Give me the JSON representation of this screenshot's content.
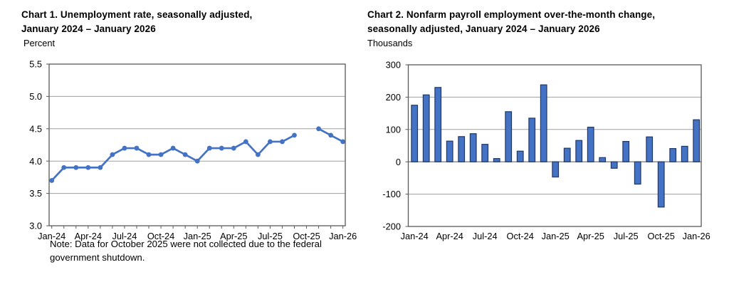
{
  "page": {
    "background": "#ffffff"
  },
  "colors": {
    "series_blue": "#4472c4",
    "bar_fill": "#4472c4",
    "bar_border": "#1f3864",
    "gridline": "#a0a0a0",
    "zero_line": "#808080",
    "axis_border": "#595959",
    "tick_color": "#595959",
    "text": "#000000"
  },
  "chart1": {
    "title_lines": [
      "Chart 1. Unemployment rate, seasonally adjusted,",
      "January 2024 – January 2026"
    ],
    "unit_label": "Percent",
    "note_lines": [
      "Note: Data for October 2025 were not collected due to the federal",
      "government shutdown."
    ]
  },
  "chart2": {
    "title_lines": [
      "Chart 2. Nonfarm payroll employment over-the-month change,",
      "seasonally adjusted, January 2024 – January 2026"
    ],
    "unit_label": "Thousands"
  },
  "chart_data": [
    {
      "type": "line",
      "title": "Chart 1. Unemployment rate, seasonally adjusted, January 2024 – January 2026",
      "ylabel": "Percent",
      "x": [
        "Jan-24",
        "Feb-24",
        "Mar-24",
        "Apr-24",
        "May-24",
        "Jun-24",
        "Jul-24",
        "Aug-24",
        "Sep-24",
        "Oct-24",
        "Nov-24",
        "Dec-24",
        "Jan-25",
        "Feb-25",
        "Mar-25",
        "Apr-25",
        "May-25",
        "Jun-25",
        "Jul-25",
        "Aug-25",
        "Sep-25",
        "Oct-25",
        "Nov-25",
        "Dec-25",
        "Jan-26"
      ],
      "values": [
        3.7,
        3.9,
        3.9,
        3.9,
        3.9,
        4.1,
        4.2,
        4.2,
        4.1,
        4.1,
        4.2,
        4.1,
        4.0,
        4.2,
        4.2,
        4.2,
        4.3,
        4.1,
        4.3,
        4.3,
        4.4,
        null,
        4.5,
        4.4,
        4.3
      ],
      "missing_note": "October 2025 not collected (federal government shutdown)",
      "ylim": [
        3.0,
        5.5
      ],
      "ytick_values": [
        5.5,
        5.0,
        4.5,
        4.0,
        3.5,
        3.0
      ],
      "ytick_labels": [
        "5.5",
        "5.0",
        "4.5",
        "4.0",
        "3.5",
        "3.0"
      ],
      "xtick_labels": [
        "Jan-24",
        "Apr-24",
        "Jul-24",
        "Oct-24",
        "Jan-25",
        "Apr-25",
        "Jul-25",
        "Oct-25",
        "Jan-26"
      ],
      "grid": true,
      "legend": "none"
    },
    {
      "type": "bar",
      "title": "Chart 2. Nonfarm payroll employment over-the-month change, seasonally adjusted, January 2024 – January 2026",
      "ylabel": "Thousands",
      "x": [
        "Jan-24",
        "Feb-24",
        "Mar-24",
        "Apr-24",
        "May-24",
        "Jun-24",
        "Jul-24",
        "Aug-24",
        "Sep-24",
        "Oct-24",
        "Nov-24",
        "Dec-24",
        "Jan-25",
        "Feb-25",
        "Mar-25",
        "Apr-25",
        "May-25",
        "Jun-25",
        "Jul-25",
        "Aug-25",
        "Sep-25",
        "Oct-25",
        "Nov-25",
        "Dec-25",
        "Jan-26"
      ],
      "values": [
        175,
        207,
        230,
        64,
        78,
        87,
        54,
        10,
        155,
        33,
        135,
        238,
        -47,
        42,
        66,
        107,
        13,
        -20,
        63,
        -69,
        77,
        -140,
        41,
        48,
        130
      ],
      "ylim": [
        -200,
        300
      ],
      "ytick_values": [
        300,
        200,
        100,
        0,
        -100,
        -200
      ],
      "ytick_labels": [
        "300",
        "200",
        "100",
        "0",
        "-100",
        "-200"
      ],
      "xtick_labels": [
        "Jan-24",
        "Apr-24",
        "Jul-24",
        "Oct-24",
        "Jan-25",
        "Apr-25",
        "Jul-25",
        "Oct-25",
        "Jan-26"
      ],
      "grid": true,
      "legend": "none"
    }
  ]
}
